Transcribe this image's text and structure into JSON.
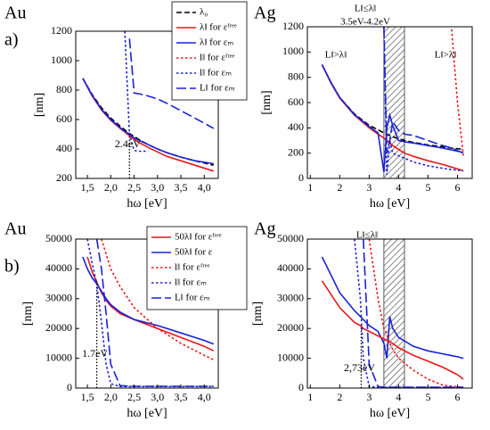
{
  "chart_data": [
    {
      "type": "line",
      "title": "Au",
      "panel_label": "a)",
      "xlabel": "hω [eV]",
      "ylabel": "[nm]",
      "legend": true,
      "xlim": [
        1.25,
        4.3
      ],
      "ylim": [
        200,
        1200
      ],
      "xticks": [
        {
          "value": 1.5,
          "label": "1,5"
        },
        {
          "value": 2.0,
          "label": "2,0"
        },
        {
          "value": 2.5,
          "label": "2,5"
        },
        {
          "value": 3.0,
          "label": "3,0"
        },
        {
          "value": 3.5,
          "label": "3,5"
        },
        {
          "value": 4.0,
          "label": "4,0"
        }
      ],
      "yticks": [
        200,
        400,
        600,
        800,
        1000,
        1200
      ],
      "markers": [
        {
          "x": 2.4,
          "y": 500,
          "label": "2.4eV"
        }
      ],
      "x": [
        1.4,
        1.6,
        1.8,
        2.0,
        2.2,
        2.3,
        2.4,
        2.5,
        2.6,
        2.8,
        3.0,
        3.2,
        3.5,
        3.8,
        4.2
      ],
      "series": [
        {
          "name": "λ₀",
          "color": "#000000",
          "dash": "dash",
          "values": [
            880,
            770,
            680,
            610,
            555,
            530,
            505,
            485,
            465,
            430,
            400,
            375,
            345,
            320,
            290
          ]
        },
        {
          "name": "λ‖ for εᶠʳᵉᵉ",
          "color": "#e8161b",
          "dash": "solid",
          "values": [
            880,
            760,
            665,
            595,
            540,
            515,
            490,
            465,
            445,
            410,
            380,
            350,
            320,
            290,
            250
          ]
        },
        {
          "name": "λ‖ for εₘ",
          "color": "#1a22d6",
          "dash": "solid",
          "values": [
            880,
            765,
            670,
            600,
            545,
            520,
            500,
            475,
            460,
            430,
            400,
            375,
            345,
            320,
            300
          ]
        },
        {
          "name": "l‖ for εᶠʳᵉᵉ",
          "color": "#e8161b",
          "dash": "dot",
          "values": [
            null,
            null,
            null,
            null,
            null,
            null,
            null,
            null,
            null,
            null,
            null,
            null,
            null,
            null,
            null
          ]
        },
        {
          "name": "l‖ for εₘ",
          "color": "#1a22d6",
          "dash": "dot",
          "values": [
            null,
            null,
            null,
            null,
            null,
            1200,
            500,
            390,
            385,
            385,
            null,
            null,
            null,
            null,
            null
          ]
        },
        {
          "name": "L‖ for εₘ",
          "color": "#1a22d6",
          "dash": "longdash",
          "values": [
            null,
            null,
            null,
            null,
            null,
            null,
            1150,
            780,
            775,
            760,
            740,
            710,
            660,
            610,
            540
          ]
        }
      ]
    },
    {
      "type": "line",
      "title": "Ag",
      "xlabel": "hω [eV]",
      "ylabel": "[nm]",
      "legend": false,
      "xlim": [
        0.9,
        6.5
      ],
      "ylim": [
        0,
        1200
      ],
      "xticks": [
        1,
        2,
        3,
        4,
        5,
        6
      ],
      "yticks": [
        0,
        200,
        400,
        600,
        800,
        1000,
        1200
      ],
      "shaded_region": [
        3.5,
        4.2
      ],
      "annotations": [
        "L‖≤λ‖",
        "3.5eV-4.2eV",
        "L‖>λ‖",
        "L‖>λ‖"
      ],
      "x": [
        1.4,
        1.7,
        2.0,
        2.5,
        3.0,
        3.3,
        3.5,
        3.6,
        3.7,
        3.8,
        4.0,
        4.2,
        4.5,
        5.0,
        5.5,
        5.8,
        6.0,
        6.2
      ],
      "series": [
        {
          "color": "#000000",
          "dash": "dash",
          "values": [
            900,
            760,
            640,
            510,
            420,
            385,
            360,
            350,
            340,
            330,
            315,
            300,
            285,
            265,
            250,
            240,
            235,
            230
          ]
        },
        {
          "color": "#e8161b",
          "dash": "solid",
          "values": [
            900,
            755,
            635,
            500,
            400,
            350,
            320,
            300,
            280,
            260,
            230,
            200,
            175,
            140,
            110,
            90,
            75,
            60
          ]
        },
        {
          "color": "#1a22d6",
          "dash": "solid",
          "values": [
            900,
            760,
            640,
            505,
            410,
            360,
            50,
            400,
            500,
            420,
            300,
            290,
            280,
            260,
            240,
            225,
            215,
            205
          ]
        },
        {
          "color": "#e8161b",
          "dash": "dot",
          "values": [
            null,
            null,
            null,
            null,
            null,
            null,
            null,
            null,
            null,
            null,
            null,
            null,
            null,
            null,
            null,
            1180,
            600,
            180
          ]
        },
        {
          "color": "#1a22d6",
          "dash": "dot",
          "values": [
            null,
            null,
            null,
            null,
            null,
            null,
            1200,
            30,
            300,
            200,
            180,
            160,
            130,
            100,
            80,
            70,
            65,
            60
          ]
        },
        {
          "color": "#1a22d6",
          "dash": "longdash",
          "values": [
            null,
            null,
            null,
            null,
            null,
            null,
            1200,
            200,
            300,
            450,
            380,
            350,
            340,
            300,
            260,
            240,
            220,
            200
          ]
        }
      ]
    },
    {
      "type": "line",
      "title": "Au",
      "panel_label": "b)",
      "xlabel": "hω [eV]",
      "ylabel": "[nm]",
      "legend": true,
      "xlim": [
        1.25,
        4.3
      ],
      "ylim": [
        0,
        50000
      ],
      "xticks": [
        {
          "value": 1.5,
          "label": "1,5"
        },
        {
          "value": 2.0,
          "label": "2,0"
        },
        {
          "value": 2.5,
          "label": "2,5"
        },
        {
          "value": 3.0,
          "label": "3,0"
        },
        {
          "value": 3.5,
          "label": "3,5"
        },
        {
          "value": 4.0,
          "label": "4,0"
        }
      ],
      "yticks": [
        0,
        10000,
        20000,
        30000,
        40000,
        50000
      ],
      "markers": [
        {
          "x": 1.7,
          "y": 36000,
          "label": "1.7eV"
        }
      ],
      "x": [
        1.4,
        1.5,
        1.6,
        1.7,
        1.8,
        1.9,
        2.0,
        2.2,
        2.5,
        3.0,
        3.5,
        4.0,
        4.2
      ],
      "series": [
        {
          "name": "50λ‖ for εᶠʳᵉᵉ",
          "color": "#e8161b",
          "dash": "solid",
          "values": [
            null,
            44000,
            39000,
            35500,
            32000,
            29500,
            27500,
            25000,
            23000,
            20000,
            17000,
            14000,
            12500
          ]
        },
        {
          "name": "50λ‖ for ε",
          "color": "#1a22d6",
          "dash": "solid",
          "values": [
            44000,
            40000,
            37000,
            35000,
            32500,
            30000,
            28000,
            25500,
            23000,
            21000,
            18500,
            16000,
            14800
          ]
        },
        {
          "name": "l‖ for εᶠʳᵉᵉ",
          "color": "#e8161b",
          "dash": "dot",
          "values": [
            null,
            null,
            null,
            null,
            50000,
            45000,
            40000,
            34000,
            27000,
            20000,
            15000,
            11000,
            9500
          ]
        },
        {
          "name": "l‖ for εₘ",
          "color": "#1a22d6",
          "dash": "dot",
          "values": [
            null,
            50000,
            42000,
            35000,
            22000,
            8000,
            1500,
            500,
            500,
            500,
            500,
            500,
            500
          ]
        },
        {
          "name": "L‖ for εₘ",
          "color": "#1a22d6",
          "dash": "longdash",
          "values": [
            null,
            null,
            null,
            50000,
            40000,
            25000,
            8000,
            800,
            600,
            600,
            600,
            600,
            600
          ]
        }
      ]
    },
    {
      "type": "line",
      "title": "Ag",
      "xlabel": "hω [eV]",
      "ylabel": "[nm]",
      "legend": false,
      "xlim": [
        0.9,
        6.5
      ],
      "ylim": [
        0,
        50000
      ],
      "xticks": [
        1,
        2,
        3,
        4,
        5,
        6
      ],
      "yticks": [
        0,
        10000,
        20000,
        30000,
        40000,
        50000
      ],
      "shaded_region": [
        3.5,
        4.2
      ],
      "annotations": [
        "L‖≤λ‖"
      ],
      "markers": [
        {
          "x": 2.73,
          "y": 21000,
          "label": "2,73eV"
        }
      ],
      "x": [
        1.4,
        2.0,
        2.5,
        2.7,
        2.8,
        3.0,
        3.3,
        3.5,
        3.6,
        3.7,
        3.8,
        4.0,
        4.5,
        5.0,
        5.5,
        6.0,
        6.2
      ],
      "series": [
        {
          "color": "#1a22d6",
          "dash": "solid",
          "values": [
            44000,
            32000,
            26000,
            24000,
            23000,
            21000,
            19000,
            15000,
            10000,
            24000,
            20000,
            17000,
            14000,
            12500,
            11500,
            10500,
            10000
          ]
        },
        {
          "color": "#e8161b",
          "dash": "solid",
          "values": [
            36000,
            27000,
            22000,
            21000,
            20000,
            19000,
            17500,
            16500,
            16000,
            15500,
            15000,
            13500,
            11000,
            9000,
            7000,
            4500,
            3000
          ]
        },
        {
          "color": "#e8161b",
          "dash": "dot",
          "values": [
            null,
            null,
            null,
            null,
            null,
            50000,
            30000,
            20000,
            18000,
            15000,
            13000,
            10000,
            6000,
            3000,
            1000,
            400,
            300
          ]
        },
        {
          "color": "#1a22d6",
          "dash": "dot",
          "values": [
            null,
            null,
            50000,
            30000,
            10000,
            500,
            300,
            200,
            200,
            200,
            200,
            200,
            200,
            200,
            200,
            200,
            200
          ]
        },
        {
          "color": "#1a22d6",
          "dash": "longdash",
          "values": [
            null,
            null,
            null,
            null,
            50000,
            8000,
            500,
            300,
            300,
            300,
            300,
            300,
            300,
            300,
            300,
            300,
            300
          ]
        }
      ]
    }
  ]
}
